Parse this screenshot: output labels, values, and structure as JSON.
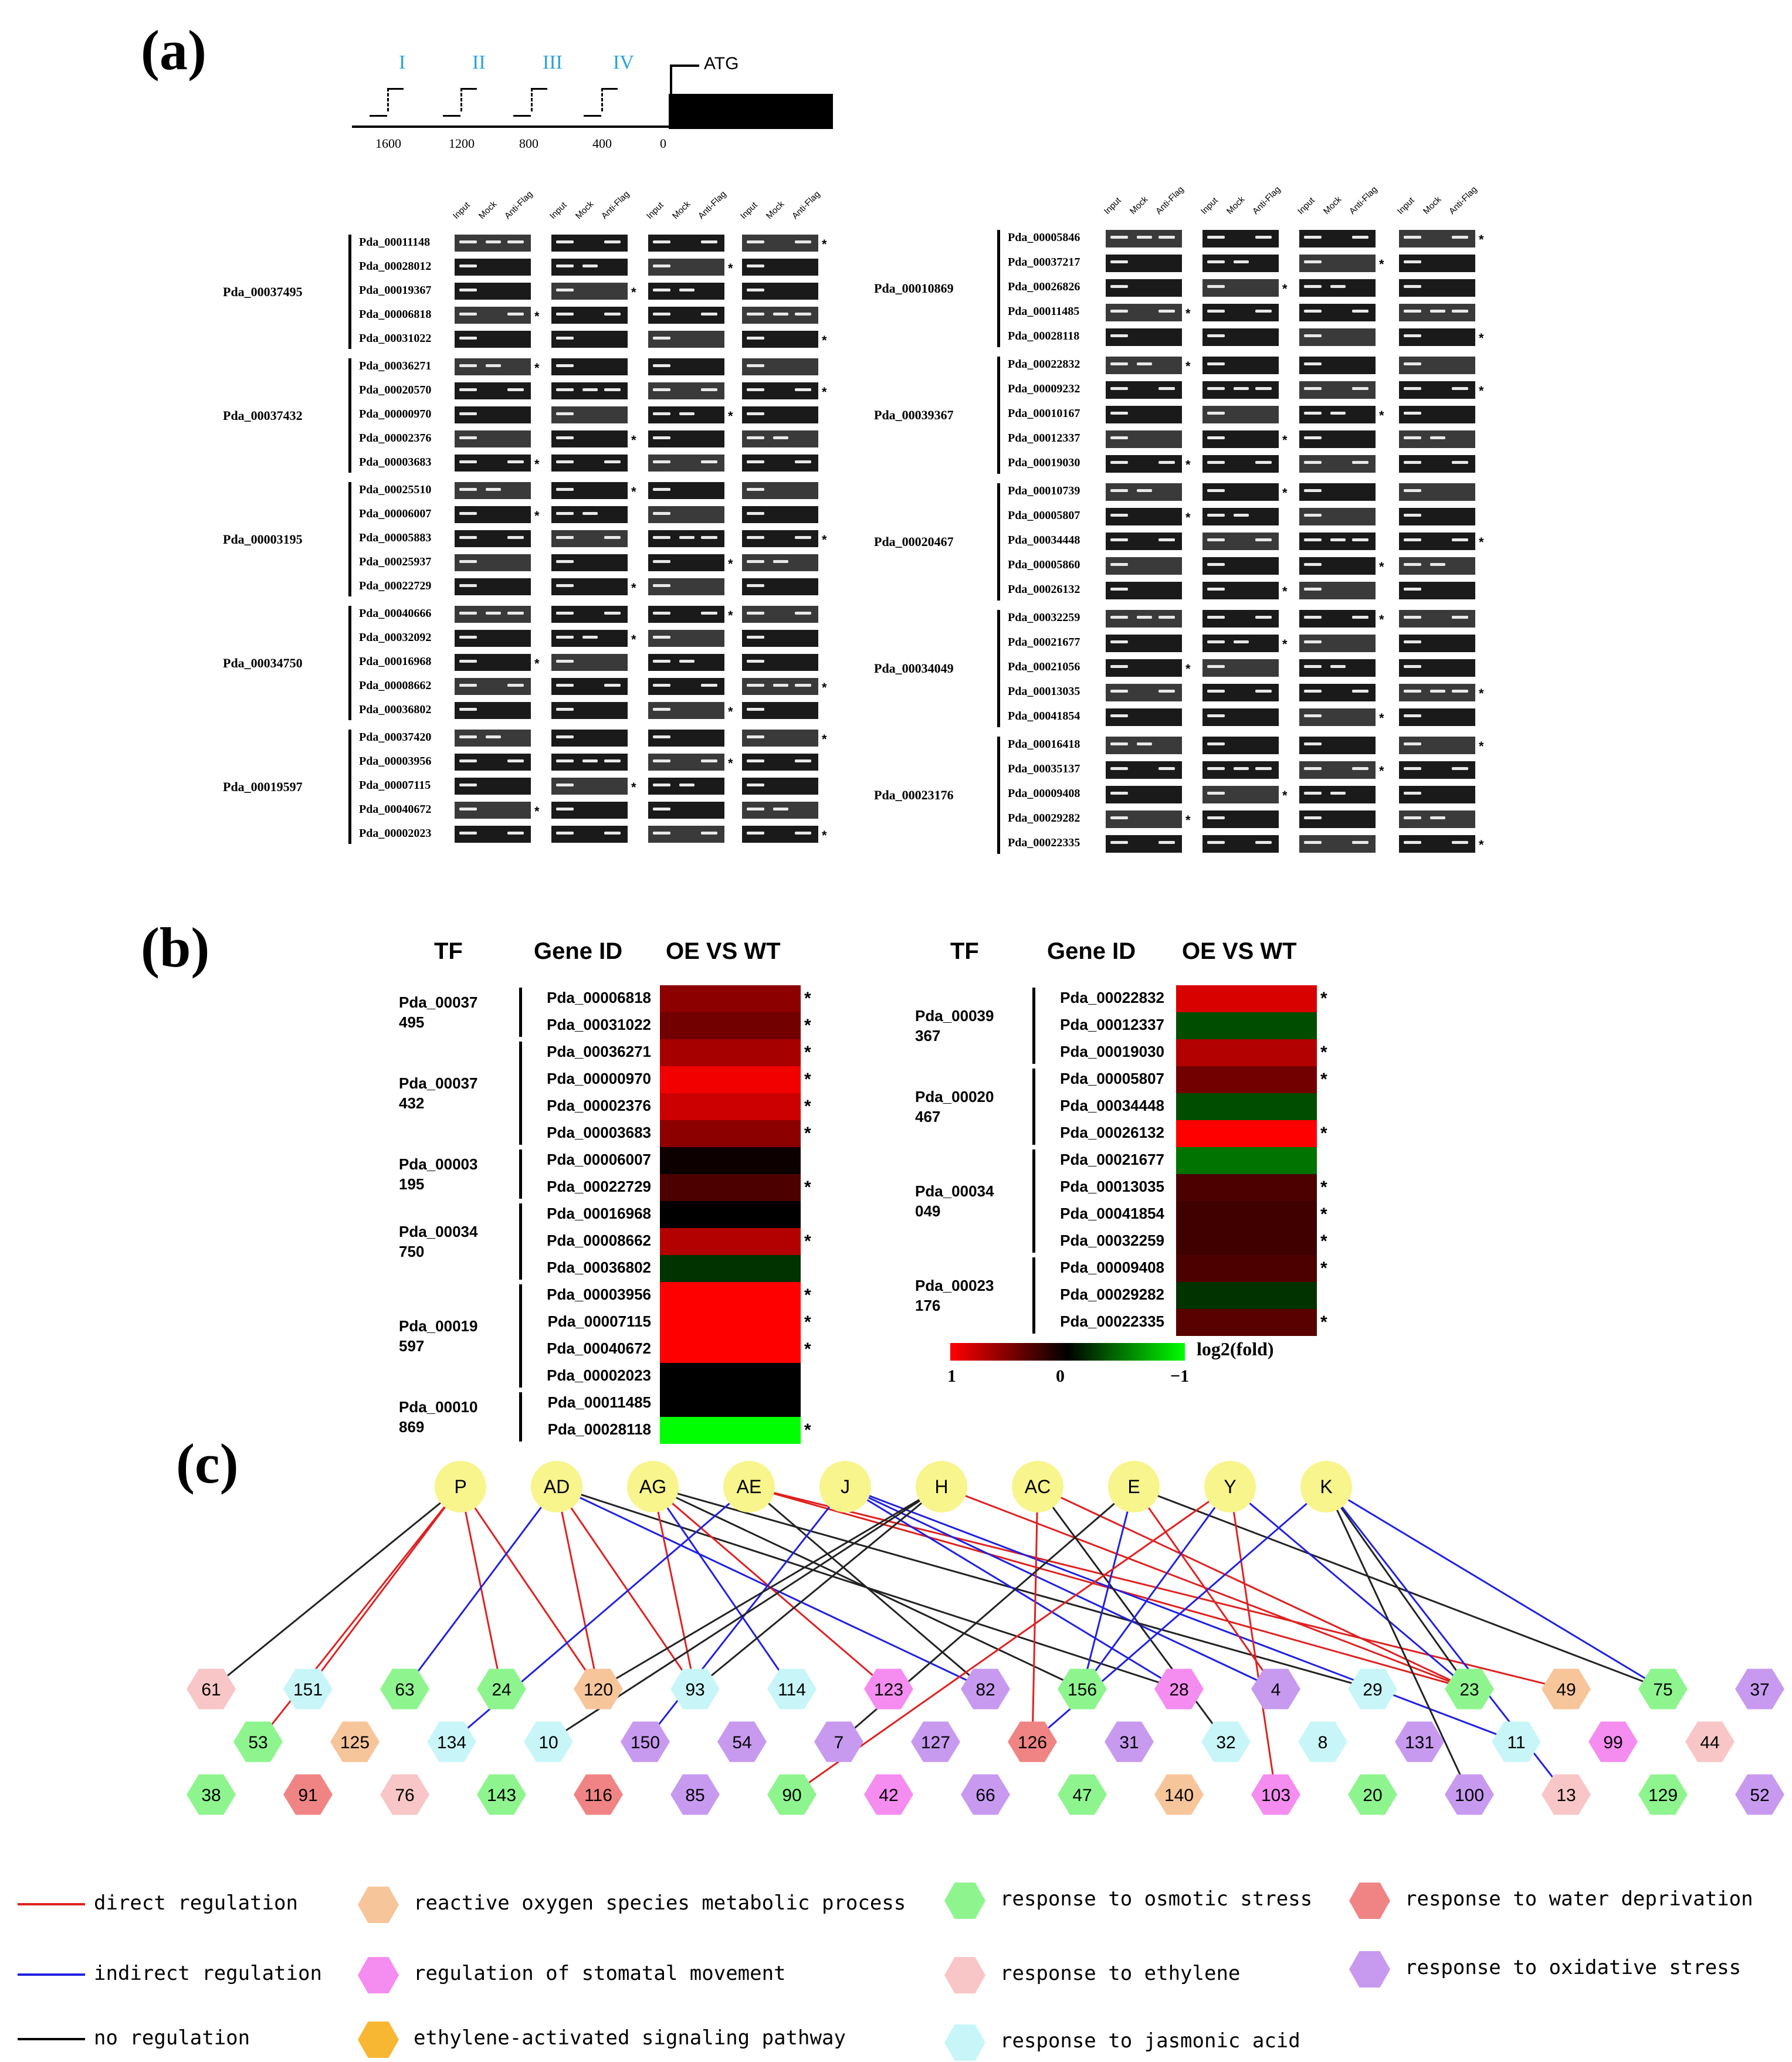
{
  "panels": {
    "a": "(a)",
    "b": "(b)",
    "c": "(c)"
  },
  "promoter": {
    "sites": [
      "I",
      "II",
      "III",
      "IV"
    ],
    "positions": [
      "1600",
      "1200",
      "800",
      "400",
      "0"
    ],
    "atg": "ATG"
  },
  "gel_columns": [
    "Input",
    "Mock",
    "Anti-Flag"
  ],
  "chip_left": [
    {
      "tf": "Pda_00037495",
      "genes": [
        "Pda_00011148",
        "Pda_00028012",
        "Pda_00019367",
        "Pda_00006818",
        "Pda_00031022"
      ]
    },
    {
      "tf": "Pda_00037432",
      "genes": [
        "Pda_00036271",
        "Pda_00020570",
        "Pda_00000970",
        "Pda_00002376",
        "Pda_00003683"
      ]
    },
    {
      "tf": "Pda_00003195",
      "genes": [
        "Pda_00025510",
        "Pda_00006007",
        "Pda_00005883",
        "Pda_00025937",
        "Pda_00022729"
      ]
    },
    {
      "tf": "Pda_00034750",
      "genes": [
        "Pda_00040666",
        "Pda_00032092",
        "Pda_00016968",
        "Pda_00008662",
        "Pda_00036802"
      ]
    },
    {
      "tf": "Pda_00019597",
      "genes": [
        "Pda_00037420",
        "Pda_00003956",
        "Pda_00007115",
        "Pda_00040672",
        "Pda_00002023"
      ]
    }
  ],
  "chip_right": [
    {
      "tf": "Pda_00010869",
      "genes": [
        "Pda_00005846",
        "Pda_00037217",
        "Pda_00026826",
        "Pda_00011485",
        "Pda_00028118"
      ]
    },
    {
      "tf": "Pda_00039367",
      "genes": [
        "Pda_00022832",
        "Pda_00009232",
        "Pda_00010167",
        "Pda_00012337",
        "Pda_00019030"
      ]
    },
    {
      "tf": "Pda_00020467",
      "genes": [
        "Pda_00010739",
        "Pda_00005807",
        "Pda_00034448",
        "Pda_00005860",
        "Pda_00026132"
      ]
    },
    {
      "tf": "Pda_00034049",
      "genes": [
        "Pda_00032259",
        "Pda_00021677",
        "Pda_00021056",
        "Pda_00013035",
        "Pda_00041854"
      ]
    },
    {
      "tf": "Pda_00023176",
      "genes": [
        "Pda_00016418",
        "Pda_00035137",
        "Pda_00009408",
        "Pda_00029282",
        "Pda_00022335"
      ]
    }
  ],
  "heatmap": {
    "headers": {
      "tf": "TF",
      "gene": "Gene ID",
      "cmp": "OE VS WT"
    },
    "left": [
      {
        "tf": [
          "Pda_00037",
          "495"
        ],
        "rows": [
          [
            "Pda_00006818",
            0.55,
            true
          ],
          [
            "Pda_00031022",
            0.45,
            true
          ]
        ]
      },
      {
        "tf": [
          "Pda_00037",
          "432"
        ],
        "rows": [
          [
            "Pda_00036271",
            0.65,
            true
          ],
          [
            "Pda_00000970",
            0.95,
            true
          ],
          [
            "Pda_00002376",
            0.8,
            true
          ],
          [
            "Pda_00003683",
            0.55,
            true
          ]
        ]
      },
      {
        "tf": [
          "Pda_00003",
          "195"
        ],
        "rows": [
          [
            "Pda_00006007",
            0.05,
            false
          ],
          [
            "Pda_00022729",
            0.3,
            true
          ]
        ]
      },
      {
        "tf": [
          "Pda_00034",
          "750"
        ],
        "rows": [
          [
            "Pda_00016968",
            0.0,
            false
          ],
          [
            "Pda_00008662",
            0.7,
            true
          ],
          [
            "Pda_00036802",
            -0.2,
            false
          ]
        ]
      },
      {
        "tf": [
          "Pda_00019",
          "597"
        ],
        "rows": [
          [
            "Pda_00003956",
            1.0,
            true
          ],
          [
            "Pda_00007115",
            1.0,
            true
          ],
          [
            "Pda_00040672",
            1.0,
            true
          ],
          [
            "Pda_00002023",
            0.0,
            false
          ]
        ]
      },
      {
        "tf": [
          "Pda_00010",
          "869"
        ],
        "rows": [
          [
            "Pda_00011485",
            0.0,
            false
          ],
          [
            "Pda_00028118",
            -1.0,
            true
          ]
        ]
      }
    ],
    "right": [
      {
        "tf": [
          "Pda_00039",
          "367"
        ],
        "rows": [
          [
            "Pda_00022832",
            0.85,
            true
          ],
          [
            "Pda_00012337",
            -0.3,
            false
          ],
          [
            "Pda_00019030",
            0.7,
            true
          ]
        ]
      },
      {
        "tf": [
          "Pda_00020",
          "467"
        ],
        "rows": [
          [
            "Pda_00005807",
            0.45,
            true
          ],
          [
            "Pda_00034448",
            -0.3,
            false
          ],
          [
            "Pda_00026132",
            1.0,
            true
          ]
        ]
      },
      {
        "tf": [
          "Pda_00034",
          "049"
        ],
        "rows": [
          [
            "Pda_00021677",
            -0.45,
            false
          ],
          [
            "Pda_00013035",
            0.3,
            true
          ],
          [
            "Pda_00041854",
            0.25,
            true
          ],
          [
            "Pda_00032259",
            0.25,
            true
          ]
        ]
      },
      {
        "tf": [
          "Pda_00023",
          "176"
        ],
        "rows": [
          [
            "Pda_00009408",
            0.3,
            true
          ],
          [
            "Pda_00029282",
            -0.2,
            false
          ],
          [
            "Pda_00022335",
            0.35,
            true
          ]
        ]
      }
    ],
    "scale": {
      "label": "log2(fold)",
      "ticks": [
        "1",
        "0",
        "−1"
      ]
    }
  },
  "network": {
    "tfs": [
      "P",
      "AD",
      "AG",
      "AE",
      "J",
      "H",
      "AC",
      "E",
      "Y",
      "K"
    ],
    "row1": [
      [
        "61",
        "eth"
      ],
      [
        "151",
        "ja"
      ],
      [
        "63",
        "osm"
      ],
      [
        "24",
        "osm"
      ],
      [
        "120",
        "ros"
      ],
      [
        "93",
        "ja"
      ],
      [
        "114",
        "ja"
      ],
      [
        "123",
        "sto"
      ],
      [
        "82",
        "ox"
      ],
      [
        "156",
        "osm"
      ],
      [
        "28",
        "sto"
      ],
      [
        "4",
        "ox"
      ],
      [
        "29",
        "ja"
      ],
      [
        "23",
        "osm"
      ],
      [
        "49",
        "ros"
      ],
      [
        "75",
        "osm"
      ],
      [
        "37",
        "ox"
      ]
    ],
    "row2": [
      [
        "53",
        "osm"
      ],
      [
        "125",
        "ros"
      ],
      [
        "134",
        "ja"
      ],
      [
        "10",
        "ja"
      ],
      [
        "150",
        "ox"
      ],
      [
        "54",
        "ox"
      ],
      [
        "7",
        "ox"
      ],
      [
        "127",
        "ox"
      ],
      [
        "126",
        "wat"
      ],
      [
        "31",
        "ox"
      ],
      [
        "32",
        "ja"
      ],
      [
        "8",
        "ja"
      ],
      [
        "131",
        "ox"
      ],
      [
        "11",
        "ja"
      ],
      [
        "99",
        "sto"
      ],
      [
        "44",
        "eth"
      ]
    ],
    "row3": [
      [
        "38",
        "osm"
      ],
      [
        "91",
        "wat"
      ],
      [
        "76",
        "eth"
      ],
      [
        "143",
        "osm"
      ],
      [
        "116",
        "wat"
      ],
      [
        "85",
        "ox"
      ],
      [
        "90",
        "osm"
      ],
      [
        "42",
        "sto"
      ],
      [
        "66",
        "ox"
      ],
      [
        "47",
        "osm"
      ],
      [
        "140",
        "ros"
      ],
      [
        "103",
        "sto"
      ],
      [
        "20",
        "osm"
      ],
      [
        "100",
        "ox"
      ],
      [
        "13",
        "eth"
      ],
      [
        "129",
        "osm"
      ],
      [
        "52",
        "ox"
      ]
    ],
    "colors": {
      "ros": "#f7c59a",
      "sto": "#f58cf0",
      "sig": "#f7b733",
      "osm": "#8ef58e",
      "eth": "#f8c6c6",
      "ja": "#c8f6f8",
      "wat": "#f08484",
      "ox": "#c79af0",
      "tf": "#f7f58c"
    },
    "edges": [
      [
        "P",
        "61",
        "black"
      ],
      [
        "P",
        "151",
        "red"
      ],
      [
        "P",
        "24",
        "red"
      ],
      [
        "P",
        "120",
        "red"
      ],
      [
        "P",
        "53",
        "red"
      ],
      [
        "AD",
        "63",
        "blue"
      ],
      [
        "AD",
        "93",
        "red"
      ],
      [
        "AD",
        "120",
        "red"
      ],
      [
        "AD",
        "82",
        "blue"
      ],
      [
        "AD",
        "28",
        "black"
      ],
      [
        "AG",
        "93",
        "red"
      ],
      [
        "AG",
        "123",
        "red"
      ],
      [
        "AG",
        "156",
        "black"
      ],
      [
        "AG",
        "29",
        "black"
      ],
      [
        "AG",
        "114",
        "blue"
      ],
      [
        "AE",
        "23",
        "red"
      ],
      [
        "AE",
        "49",
        "red"
      ],
      [
        "AE",
        "82",
        "black"
      ],
      [
        "AE",
        "134",
        "blue"
      ],
      [
        "J",
        "150",
        "blue"
      ],
      [
        "J",
        "4",
        "blue"
      ],
      [
        "J",
        "28",
        "blue"
      ],
      [
        "J",
        "11",
        "blue"
      ],
      [
        "H",
        "93",
        "black"
      ],
      [
        "H",
        "120",
        "black"
      ],
      [
        "H",
        "10",
        "black"
      ],
      [
        "H",
        "23",
        "red"
      ],
      [
        "AC",
        "32",
        "black"
      ],
      [
        "AC",
        "23",
        "red"
      ],
      [
        "AC",
        "126",
        "red"
      ],
      [
        "E",
        "156",
        "blue"
      ],
      [
        "E",
        "4",
        "red"
      ],
      [
        "E",
        "7",
        "black"
      ],
      [
        "E",
        "75",
        "black"
      ],
      [
        "Y",
        "156",
        "blue"
      ],
      [
        "Y",
        "90",
        "red"
      ],
      [
        "Y",
        "103",
        "red"
      ],
      [
        "Y",
        "23",
        "blue"
      ],
      [
        "K",
        "23",
        "black"
      ],
      [
        "K",
        "75",
        "blue"
      ],
      [
        "K",
        "100",
        "black"
      ],
      [
        "K",
        "126",
        "blue"
      ],
      [
        "K",
        "13",
        "blue"
      ]
    ]
  },
  "legend": {
    "lines": [
      [
        "direct regulation",
        "#e02020"
      ],
      [
        "indirect regulation",
        "#2020e0"
      ],
      [
        "no regulation",
        "#000000"
      ]
    ],
    "categories": [
      [
        "reactive oxygen species metabolic process",
        "ros"
      ],
      [
        "regulation of stomatal movement",
        "sto"
      ],
      [
        "ethylene-activated signaling pathway",
        "sig"
      ],
      [
        "response to osmotic stress",
        "osm"
      ],
      [
        "response to ethylene",
        "eth"
      ],
      [
        "response to jasmonic acid",
        "ja"
      ],
      [
        "response to water deprivation",
        "wat"
      ],
      [
        "response to oxidative stress",
        "ox"
      ]
    ]
  }
}
